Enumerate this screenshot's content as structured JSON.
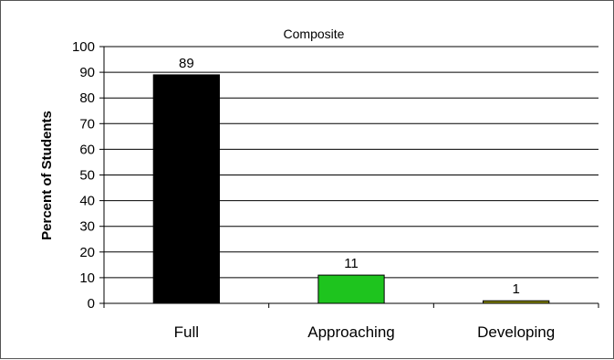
{
  "chart_data": {
    "type": "bar",
    "title": "Composite",
    "ylabel": "Percent of Students",
    "xlabel": "",
    "categories": [
      "Full",
      "Approaching",
      "Developing"
    ],
    "values": [
      89,
      11,
      1
    ],
    "data_labels": [
      "89",
      "11",
      "1"
    ],
    "colors": [
      "#000000",
      "#1ec41e",
      "#8a8a00"
    ],
    "ylim": [
      0,
      100
    ],
    "yticks": [
      0,
      10,
      20,
      30,
      40,
      50,
      60,
      70,
      80,
      90,
      100
    ],
    "grid": true,
    "legend": "none"
  }
}
